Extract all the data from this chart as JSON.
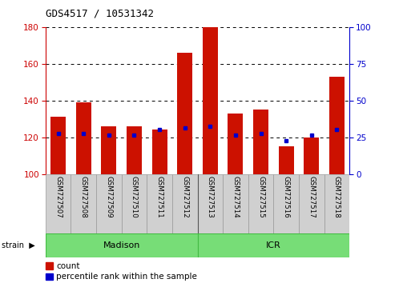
{
  "title": "GDS4517 / 10531342",
  "samples": [
    "GSM727507",
    "GSM727508",
    "GSM727509",
    "GSM727510",
    "GSM727511",
    "GSM727512",
    "GSM727513",
    "GSM727514",
    "GSM727515",
    "GSM727516",
    "GSM727517",
    "GSM727518"
  ],
  "red_values": [
    131,
    139,
    126,
    126,
    124,
    166,
    180,
    133,
    135,
    115,
    120,
    153
  ],
  "blue_values": [
    122,
    122,
    121,
    121,
    124,
    125,
    126,
    121,
    122,
    118,
    121,
    124
  ],
  "ylim_left": [
    100,
    180
  ],
  "ylim_right": [
    0,
    100
  ],
  "yticks_left": [
    100,
    120,
    140,
    160,
    180
  ],
  "yticks_right": [
    0,
    25,
    50,
    75,
    100
  ],
  "left_tick_color": "#cc0000",
  "right_tick_color": "#0000cc",
  "bar_color": "#cc1100",
  "marker_color": "#0000cc",
  "plot_bg_color": "#ffffff",
  "label_bg_color": "#d0d0d0",
  "group_bg_color": "#77dd77",
  "group_border_color": "#44bb44",
  "madison_label": "Madison",
  "icr_label": "ICR",
  "strain_label": "strain",
  "legend_count": "count",
  "legend_percentile": "percentile rank within the sample"
}
